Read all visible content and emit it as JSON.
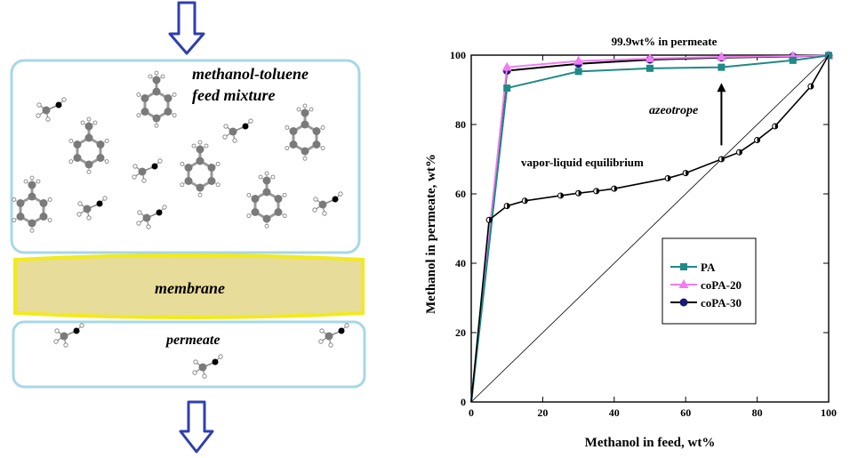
{
  "schematic": {
    "feed_label_line1": "methanol-toluene",
    "feed_label_line2": "feed mixture",
    "membrane_label": "membrane",
    "permeate_label": "permeate",
    "colors": {
      "box_border": "#a7d8e6",
      "membrane_fill": "#e8dc9a",
      "membrane_border": "#f2ea1c",
      "arrow": "#2f3fb0",
      "atom_carbon": "#7a7a7a",
      "atom_oxygen": "#000000",
      "atom_hydrogen": "#ffffff"
    }
  },
  "chart_data": {
    "type": "line",
    "xlabel": "Methanol in feed, wt%",
    "ylabel": "Methanol in permeate, wt%",
    "xlim": [
      0,
      100
    ],
    "ylim": [
      0,
      100
    ],
    "x_ticks": [
      "0",
      "20",
      "40",
      "60",
      "80",
      "100"
    ],
    "y_ticks": [
      "0",
      "20",
      "40",
      "60",
      "80",
      "100"
    ],
    "grid": false,
    "legend_position": "center-right",
    "series": [
      {
        "name": "PA",
        "color": "#1f8a86",
        "marker": "square",
        "x": [
          0,
          10,
          30,
          50,
          70,
          90,
          100
        ],
        "y": [
          0,
          90.5,
          95.3,
          96.2,
          96.5,
          98.5,
          99.9
        ]
      },
      {
        "name": "coPA-20",
        "color": "#f07cf0",
        "marker": "triangle",
        "x": [
          0,
          10,
          30,
          50,
          70,
          90,
          100
        ],
        "y": [
          0,
          96.5,
          98.3,
          99,
          99.5,
          99.7,
          99.9
        ]
      },
      {
        "name": "coPA-30",
        "color": "#1a1a7a",
        "marker": "circle",
        "line_color": "#000000",
        "x": [
          0,
          10,
          30,
          50,
          70,
          90,
          100
        ],
        "y": [
          0,
          95.5,
          97.5,
          98.7,
          99.3,
          99.6,
          99.9
        ]
      }
    ],
    "vle": {
      "label": "vapor-liquid equilibrium",
      "x": [
        0,
        5,
        10,
        15,
        25,
        30,
        35,
        40,
        55,
        60,
        70,
        75,
        80,
        85,
        95,
        100
      ],
      "y": [
        0,
        52.5,
        56.5,
        58,
        59.5,
        60.2,
        60.8,
        61.5,
        64.5,
        66,
        70,
        72,
        75.5,
        79.5,
        91,
        100
      ]
    },
    "diagonal": {
      "x": [
        0,
        100
      ],
      "y": [
        0,
        100
      ]
    },
    "annotations": {
      "top": "99.9wt% in permeate",
      "azeotrope": "azeotrope",
      "arrow_x": 70,
      "arrow_y_from": 74,
      "arrow_y_to": 92
    }
  }
}
